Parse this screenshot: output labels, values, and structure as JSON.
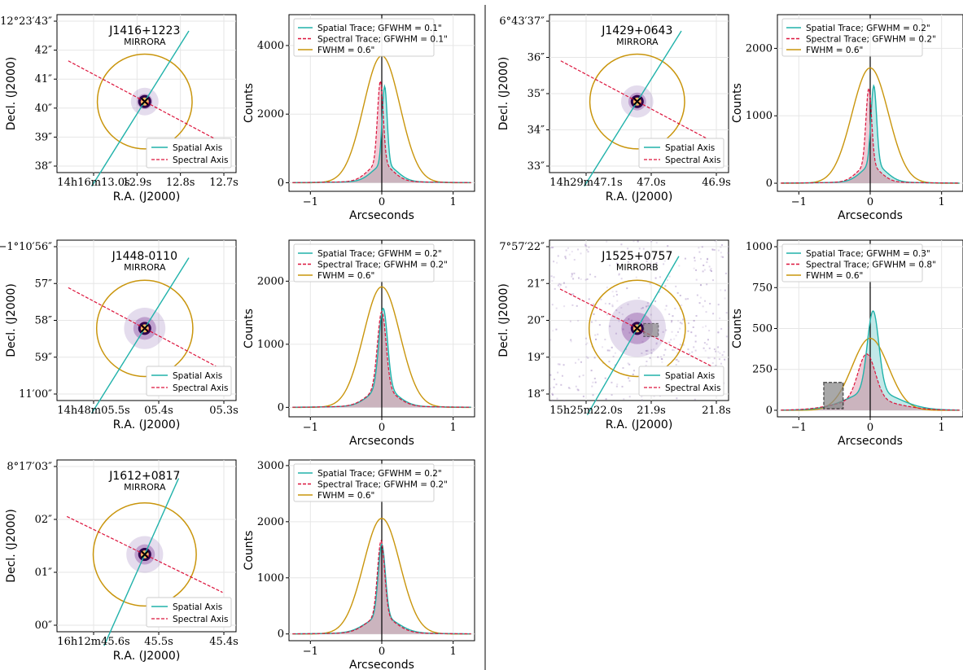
{
  "colors": {
    "spatial": "#20b2aa",
    "spectral": "#dc143c",
    "fwhm": "#c9950c",
    "shade_spatial": "#a8dede",
    "shade_spectral": "#e7a9ba",
    "shade_overlap": "#c9b3bd",
    "grid": "#e6e6e6",
    "divider": "#000000"
  },
  "axis_labels": {
    "image_x": "R.A. (J2000)",
    "image_y": "Decl. (J2000)",
    "profile_x": "Arcseconds",
    "profile_y": "Counts"
  },
  "image_legend": [
    "Spatial Axis",
    "Spectral Axis"
  ],
  "chart_data": [
    {
      "id": "p1",
      "type": "line",
      "title": "J1416+1223",
      "subtitle": "MIRRORA",
      "ra_ticks": [
        "14h16m13.0s",
        "12.9s",
        "12.8s",
        "12.7s"
      ],
      "dec_ticks": [
        "12°23′43″",
        "42″",
        "41″",
        "40″",
        "39″",
        "38″"
      ],
      "spatial_angle_deg": 58,
      "spectral_angle_deg": -28,
      "halo": 0.25,
      "legend": [
        "Spatial Trace; GFWHM = 0.1\"",
        "Spectral Trace; GFWHM = 0.1\"",
        "FWHM = 0.6\""
      ],
      "xticks": [
        "−1",
        "0",
        "1"
      ],
      "xlim": [
        -1.3,
        1.3
      ],
      "yticks": [
        0,
        2000,
        4000
      ],
      "ylim": [
        -250,
        4900
      ],
      "spatial": {
        "peak": 2780,
        "center": 0.04,
        "width": 0.035,
        "wing": 0.17
      },
      "spectral": {
        "peak": 2930,
        "center": -0.02,
        "width": 0.04,
        "wing": 0.17
      },
      "fwhm_peak": 3700,
      "box": null
    },
    {
      "id": "p2",
      "type": "line",
      "title": "J1429+0643",
      "subtitle": "MIRRORA",
      "ra_ticks": [
        "14h29m47.1s",
        "47.0s",
        "46.9s"
      ],
      "dec_ticks": [
        "6°43′37″",
        "36″",
        "35″",
        "34″",
        "33″"
      ],
      "spatial_angle_deg": 58,
      "spectral_angle_deg": -28,
      "halo": 0.35,
      "legend": [
        "Spatial Trace; GFWHM = 0.2\"",
        "Spectral Trace; GFWHM = 0.2\"",
        "FWHM = 0.6\""
      ],
      "xticks": [
        "−1",
        "0",
        "1"
      ],
      "xlim": [
        -1.3,
        1.3
      ],
      "yticks": [
        0,
        1000,
        2000
      ],
      "ylim": [
        -120,
        2500
      ],
      "spatial": {
        "peak": 1430,
        "center": 0.05,
        "width": 0.04,
        "wing": 0.17
      },
      "spectral": {
        "peak": 1390,
        "center": -0.02,
        "width": 0.04,
        "wing": 0.16
      },
      "fwhm_peak": 1710,
      "box": null
    },
    {
      "id": "p3",
      "type": "line",
      "title": "J1448-0110",
      "subtitle": "MIRRORA",
      "ra_ticks": [
        "14h48m05.5s",
        "05.4s",
        "05.3s"
      ],
      "dec_ticks": [
        "−1°10′56″",
        "57″",
        "58″",
        "59″",
        "11′00″"
      ],
      "spatial_angle_deg": 58,
      "spectral_angle_deg": -28,
      "halo": 0.55,
      "legend": [
        "Spatial Trace; GFWHM = 0.2\"",
        "Spectral Trace; GFWHM = 0.2\"",
        "FWHM = 0.6\""
      ],
      "xticks": [
        "−1",
        "0",
        "1"
      ],
      "xlim": [
        -1.3,
        1.3
      ],
      "yticks": [
        0,
        1000,
        2000
      ],
      "ylim": [
        -150,
        2650
      ],
      "spatial": {
        "peak": 1550,
        "center": 0.02,
        "width": 0.06,
        "wing": 0.2
      },
      "spectral": {
        "peak": 1500,
        "center": 0.0,
        "width": 0.06,
        "wing": 0.2
      },
      "fwhm_peak": 1910,
      "box": null
    },
    {
      "id": "p4",
      "type": "line",
      "title": "J1525+0757",
      "subtitle": "MIRRORB",
      "ra_ticks": [
        "15h25m22.0s",
        "21.9s",
        "21.8s"
      ],
      "dec_ticks": [
        "7°57′22″",
        "21″",
        "20″",
        "19″",
        "18″"
      ],
      "spatial_angle_deg": 60,
      "spectral_angle_deg": -27,
      "halo": 0.9,
      "legend": [
        "Spatial Trace; GFWHM = 0.3\"",
        "Spectral Trace; GFWHM = 0.8\"",
        "FWHM = 0.6\""
      ],
      "xticks": [
        "−1",
        "0",
        "1"
      ],
      "xlim": [
        -1.3,
        1.3
      ],
      "yticks": [
        0,
        250,
        500,
        750,
        1000
      ],
      "ylim": [
        -40,
        1040
      ],
      "spatial": {
        "peak": 600,
        "center": 0.04,
        "width": 0.08,
        "wing": 0.35
      },
      "spectral": {
        "peak": 340,
        "center": -0.05,
        "width": 0.12,
        "wing": 0.4
      },
      "fwhm_peak": 440,
      "box": {
        "x0": -0.65,
        "x1": -0.38,
        "y0": 10,
        "y1": 170
      }
    },
    {
      "id": "p5",
      "type": "line",
      "title": "J1612+0817",
      "subtitle": "MIRRORA",
      "ra_ticks": [
        "16h12m45.6s",
        "45.5s",
        "45.4s"
      ],
      "dec_ticks": [
        "8°17′03″",
        "02″",
        "01″",
        "00″"
      ],
      "spatial_angle_deg": 66,
      "spectral_angle_deg": -26,
      "halo": 0.45,
      "legend": [
        "Spatial Trace; GFWHM = 0.2\"",
        "Spectral Trace; GFWHM = 0.2\"",
        "FWHM = 0.6\""
      ],
      "xticks": [
        "−1",
        "0",
        "1"
      ],
      "xlim": [
        -1.3,
        1.3
      ],
      "yticks": [
        0,
        1000,
        2000,
        3000
      ],
      "ylim": [
        -120,
        3100
      ],
      "spatial": {
        "peak": 1580,
        "center": 0.0,
        "width": 0.05,
        "wing": 0.22
      },
      "spectral": {
        "peak": 1640,
        "center": -0.01,
        "width": 0.05,
        "wing": 0.2
      },
      "fwhm_peak": 2060,
      "box": null
    }
  ]
}
